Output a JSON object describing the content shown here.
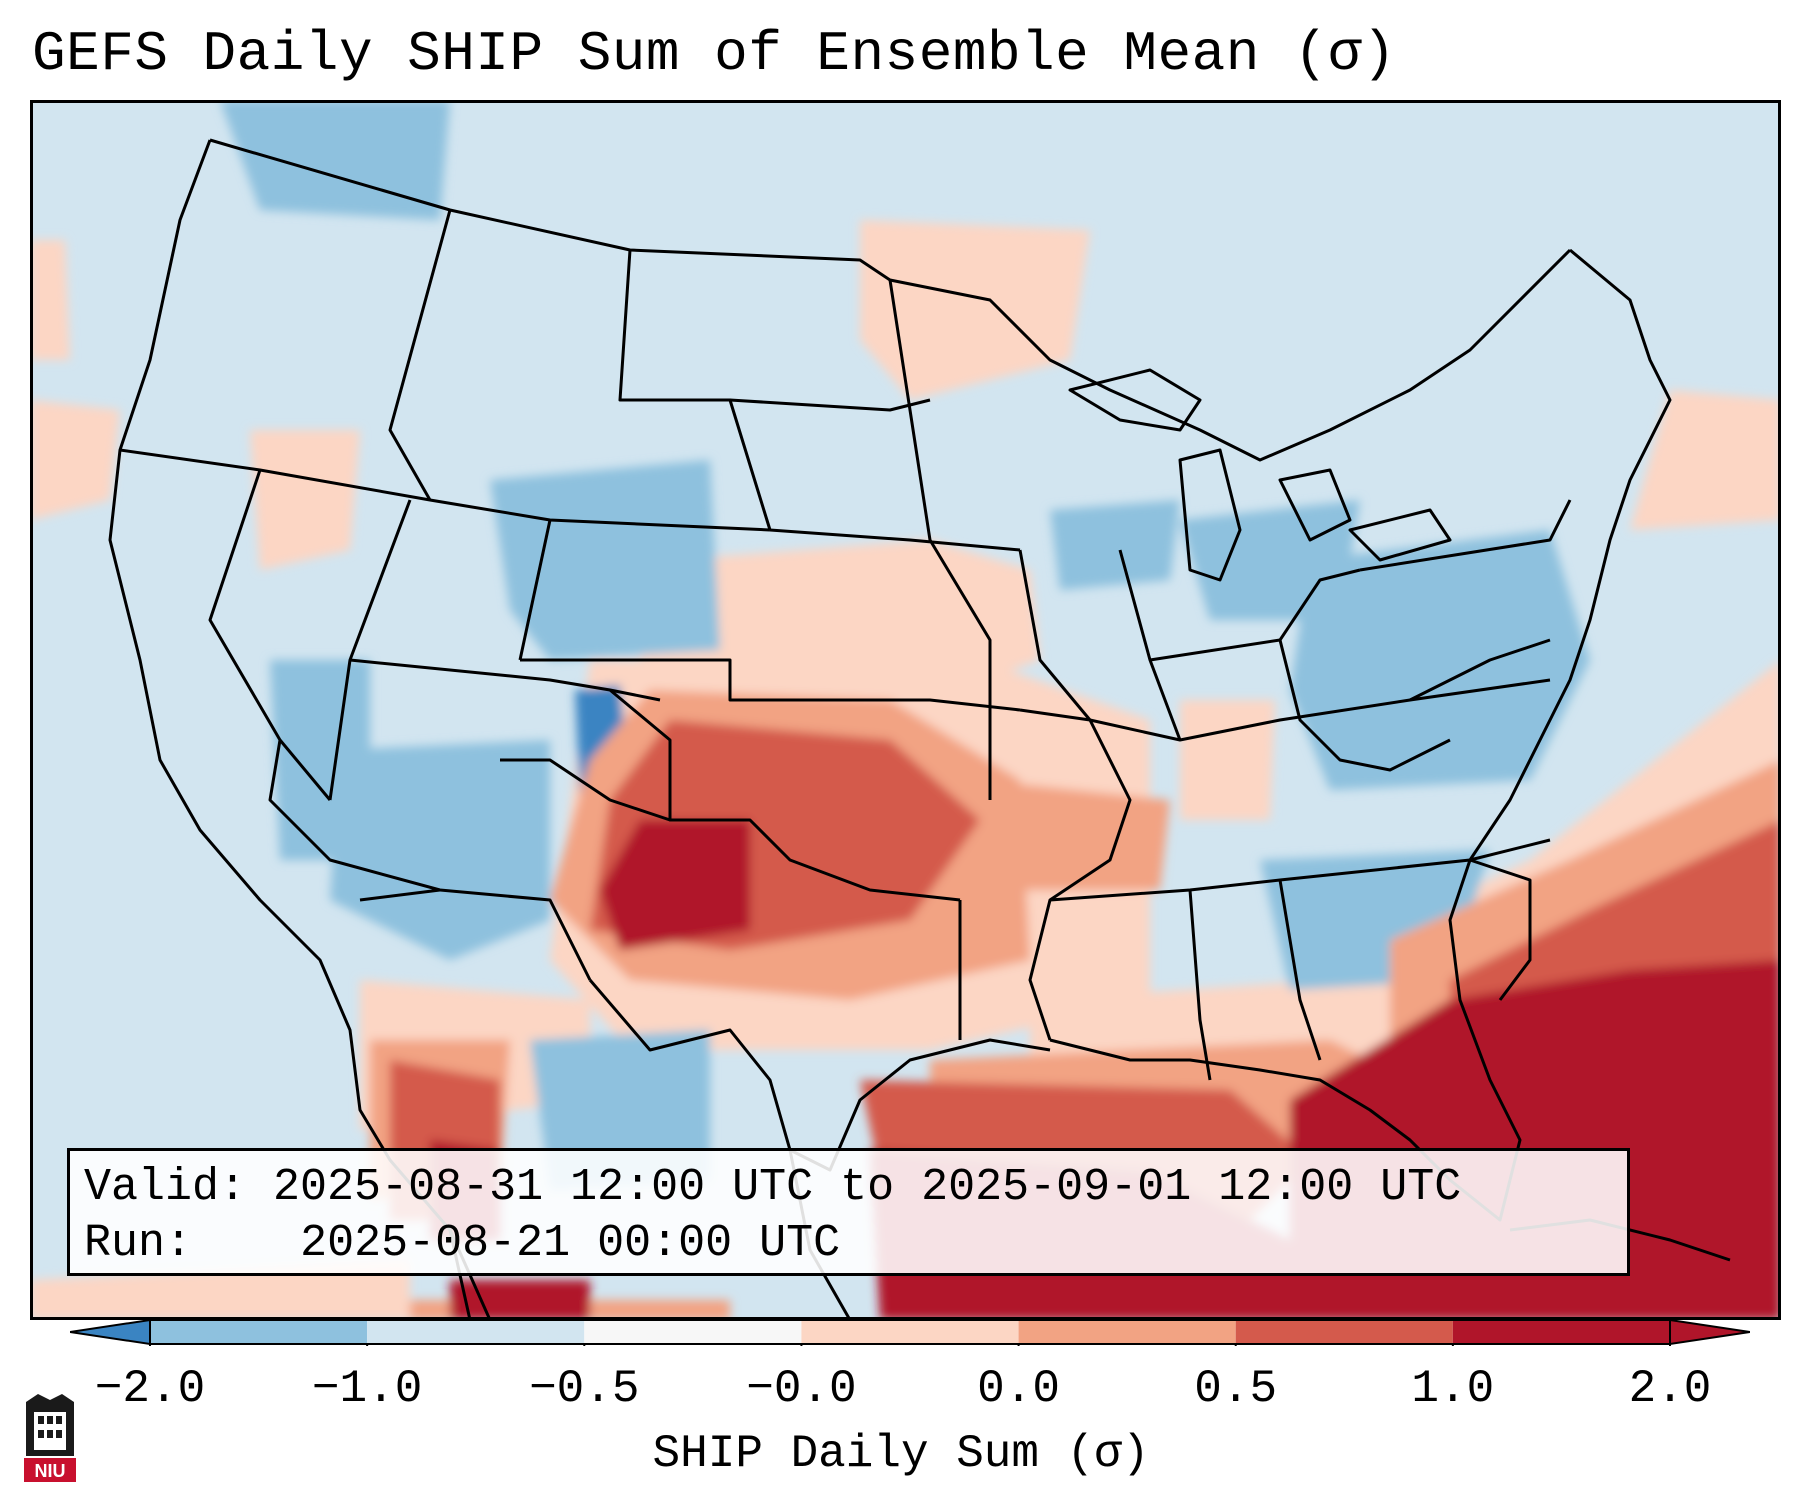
{
  "title": "GEFS Daily SHIP Sum of Ensemble Mean (σ)",
  "info": {
    "valid_label": "Valid:",
    "valid_value": "2025-08-31 12:00 UTC to 2025-09-01 12:00 UTC",
    "run_label": "Run:",
    "run_value": "2025-08-21 00:00 UTC"
  },
  "colorbar": {
    "label": "SHIP Daily Sum (σ)",
    "ticks": [
      "−2.0",
      "−1.0",
      "−0.5",
      "−0.0",
      "0.0",
      "0.5",
      "1.0",
      "2.0"
    ],
    "colors": [
      "#3a84c2",
      "#8ec1de",
      "#d2e5f0",
      "#f7f7f7",
      "#fcd6c4",
      "#f2a383",
      "#d45a4c",
      "#b0152a"
    ],
    "extend": "both"
  },
  "map": {
    "projection": "Lambert conformal, CONUS",
    "background": "#d2e5f0",
    "border_color": "#000000"
  },
  "logo": {
    "text": "NIU",
    "color": "#c8102e"
  }
}
